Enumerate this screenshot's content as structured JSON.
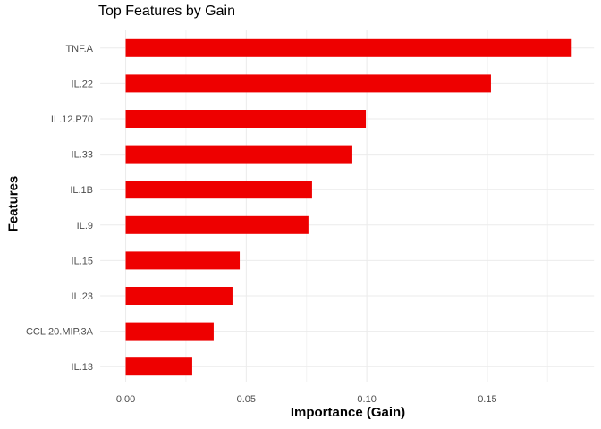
{
  "chart_data": {
    "type": "bar",
    "orientation": "horizontal",
    "title": "Top Features by Gain",
    "xlabel": "Importance (Gain)",
    "ylabel": "Features",
    "categories": [
      "TNF.A",
      "IL.22",
      "IL.12.P70",
      "IL.33",
      "IL.1B",
      "IL.9",
      "IL.15",
      "IL.23",
      "CCL.20.MIP.3A",
      "IL.13"
    ],
    "values": [
      0.185,
      0.1515,
      0.0996,
      0.094,
      0.0773,
      0.0758,
      0.0473,
      0.0443,
      0.0365,
      0.0276
    ],
    "xlim": [
      -0.00925,
      0.19425
    ],
    "x_ticks": {
      "values": [
        0,
        0.05,
        0.1,
        0.15
      ],
      "labels": [
        "0.00",
        "0.05",
        "0.10",
        "0.15"
      ]
    },
    "x_minor_ticks": [
      0.025,
      0.075,
      0.125,
      0.175
    ],
    "grid": true,
    "legend": "none",
    "style": {
      "bar_color": "#EE0000",
      "major_grid_color": "#EBEBEB",
      "minor_grid_color": "#F3F3F3",
      "axis_text_color": "#4D4D4D",
      "title_color": "#000000",
      "background": "#FFFFFF"
    }
  }
}
